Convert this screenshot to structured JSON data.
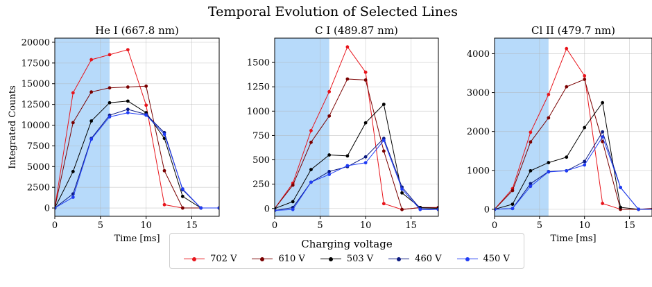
{
  "figure": {
    "suptitle": "Temporal Evolution of Selected Lines",
    "legend_title": "Charging voltage",
    "shaded_color": "#9fcdf8"
  },
  "chart_data": [
    {
      "type": "line",
      "title": "He I (667.8 nm)",
      "xlabel": "Time [ms]",
      "ylabel": "Integrated Counts",
      "xlim": [
        0,
        18
      ],
      "ylim": [
        -1000,
        20500
      ],
      "xticks": [
        0,
        5,
        10,
        15
      ],
      "yticks": [
        0,
        2500,
        5000,
        7500,
        10000,
        12500,
        15000,
        17500,
        20000
      ],
      "ytick_labels": [
        "0",
        "2500",
        "5000",
        "7500",
        "10000",
        "12500",
        "15000",
        "17500",
        "20000"
      ],
      "shaded_x": [
        0,
        6
      ],
      "grid": true,
      "series": [
        {
          "name": "702 V",
          "color": "#e8141b",
          "x": [
            0,
            2,
            4,
            6,
            8,
            10,
            12,
            14,
            16,
            18
          ],
          "y": [
            0,
            13900,
            17900,
            18500,
            19100,
            12400,
            400,
            0,
            0,
            0
          ]
        },
        {
          "name": "610 V",
          "color": "#7a0000",
          "x": [
            0,
            2,
            4,
            6,
            8,
            10,
            12,
            14,
            16,
            18
          ],
          "y": [
            0,
            10300,
            14000,
            14500,
            14600,
            14700,
            4500,
            0,
            0,
            0
          ]
        },
        {
          "name": "503 V",
          "color": "#000000",
          "x": [
            0,
            2,
            4,
            6,
            8,
            10,
            12,
            14,
            16,
            18
          ],
          "y": [
            0,
            4400,
            10500,
            12700,
            12900,
            11500,
            8400,
            1400,
            0,
            0
          ]
        },
        {
          "name": "460 V",
          "color": "#0b1a80",
          "x": [
            0,
            2,
            4,
            6,
            8,
            10,
            12,
            14,
            16,
            18
          ],
          "y": [
            0,
            1700,
            8400,
            11200,
            11900,
            11300,
            9100,
            2200,
            0,
            0
          ]
        },
        {
          "name": "450 V",
          "color": "#1f3cf5",
          "x": [
            0,
            2,
            4,
            6,
            8,
            10,
            12,
            14,
            16,
            18
          ],
          "y": [
            0,
            1300,
            8300,
            11000,
            11500,
            11200,
            8900,
            2300,
            0,
            0
          ]
        }
      ]
    },
    {
      "type": "line",
      "title": "C I (489.87 nm)",
      "xlabel": "Time [ms]",
      "ylabel": "",
      "xlim": [
        0,
        18
      ],
      "ylim": [
        -80,
        1750
      ],
      "xticks": [
        0,
        5,
        10,
        15
      ],
      "yticks": [
        0,
        250,
        500,
        750,
        1000,
        1250,
        1500
      ],
      "ytick_labels": [
        "0",
        "250",
        "500",
        "750",
        "1000",
        "1250",
        "1500"
      ],
      "shaded_x": [
        0,
        6
      ],
      "grid": true,
      "series": [
        {
          "name": "702 V",
          "color": "#e8141b",
          "x": [
            0,
            2,
            4,
            6,
            8,
            10,
            12,
            14,
            16,
            18
          ],
          "y": [
            0,
            260,
            800,
            1200,
            1660,
            1400,
            50,
            -10,
            10,
            10
          ]
        },
        {
          "name": "610 V",
          "color": "#7a0000",
          "x": [
            0,
            2,
            4,
            6,
            8,
            10,
            12,
            14,
            16,
            18
          ],
          "y": [
            0,
            240,
            680,
            950,
            1330,
            1320,
            590,
            -10,
            10,
            10
          ]
        },
        {
          "name": "503 V",
          "color": "#000000",
          "x": [
            0,
            2,
            4,
            6,
            8,
            10,
            12,
            14,
            16,
            18
          ],
          "y": [
            0,
            70,
            400,
            550,
            540,
            880,
            1070,
            160,
            10,
            0
          ]
        },
        {
          "name": "460 V",
          "color": "#0b1a80",
          "x": [
            0,
            2,
            4,
            6,
            8,
            10,
            12,
            14,
            16,
            18
          ],
          "y": [
            -20,
            10,
            270,
            380,
            430,
            530,
            720,
            220,
            0,
            -10
          ]
        },
        {
          "name": "450 V",
          "color": "#1f3cf5",
          "x": [
            0,
            2,
            4,
            6,
            8,
            10,
            12,
            14,
            16,
            18
          ],
          "y": [
            -20,
            -10,
            270,
            350,
            440,
            470,
            700,
            200,
            -10,
            -10
          ]
        }
      ]
    },
    {
      "type": "line",
      "title": "Cl II (479.7 nm)",
      "xlabel": "Time [ms]",
      "ylabel": "",
      "xlim": [
        0,
        17.5
      ],
      "ylim": [
        -180,
        4400
      ],
      "xticks": [
        0,
        5,
        10,
        15
      ],
      "yticks": [
        0,
        1000,
        2000,
        3000,
        4000
      ],
      "ytick_labels": [
        "0",
        "1000",
        "2000",
        "3000",
        "4000"
      ],
      "shaded_x": [
        0,
        6
      ],
      "grid": true,
      "series": [
        {
          "name": "702 V",
          "color": "#e8141b",
          "x": [
            0,
            2,
            4,
            6,
            8,
            10,
            12,
            14,
            16,
            18
          ],
          "y": [
            0,
            530,
            1980,
            2950,
            4130,
            3430,
            150,
            0,
            0,
            0
          ]
        },
        {
          "name": "610 V",
          "color": "#7a0000",
          "x": [
            0,
            2,
            4,
            6,
            8,
            10,
            12,
            14,
            16,
            18
          ],
          "y": [
            0,
            480,
            1730,
            2350,
            3150,
            3340,
            1740,
            0,
            0,
            30
          ]
        },
        {
          "name": "503 V",
          "color": "#000000",
          "x": [
            0,
            2,
            4,
            6,
            8,
            10,
            12,
            14,
            16,
            18
          ],
          "y": [
            0,
            130,
            990,
            1200,
            1340,
            2100,
            2740,
            50,
            0,
            0
          ]
        },
        {
          "name": "460 V",
          "color": "#0b1a80",
          "x": [
            0,
            2,
            4,
            6,
            8,
            10,
            12,
            14,
            16,
            18
          ],
          "y": [
            0,
            20,
            660,
            970,
            990,
            1230,
            1990,
            560,
            0,
            0
          ]
        },
        {
          "name": "450 V",
          "color": "#1f3cf5",
          "x": [
            0,
            2,
            4,
            6,
            8,
            10,
            12,
            14,
            16,
            18
          ],
          "y": [
            0,
            20,
            590,
            960,
            990,
            1140,
            1860,
            560,
            0,
            0
          ]
        }
      ]
    }
  ]
}
